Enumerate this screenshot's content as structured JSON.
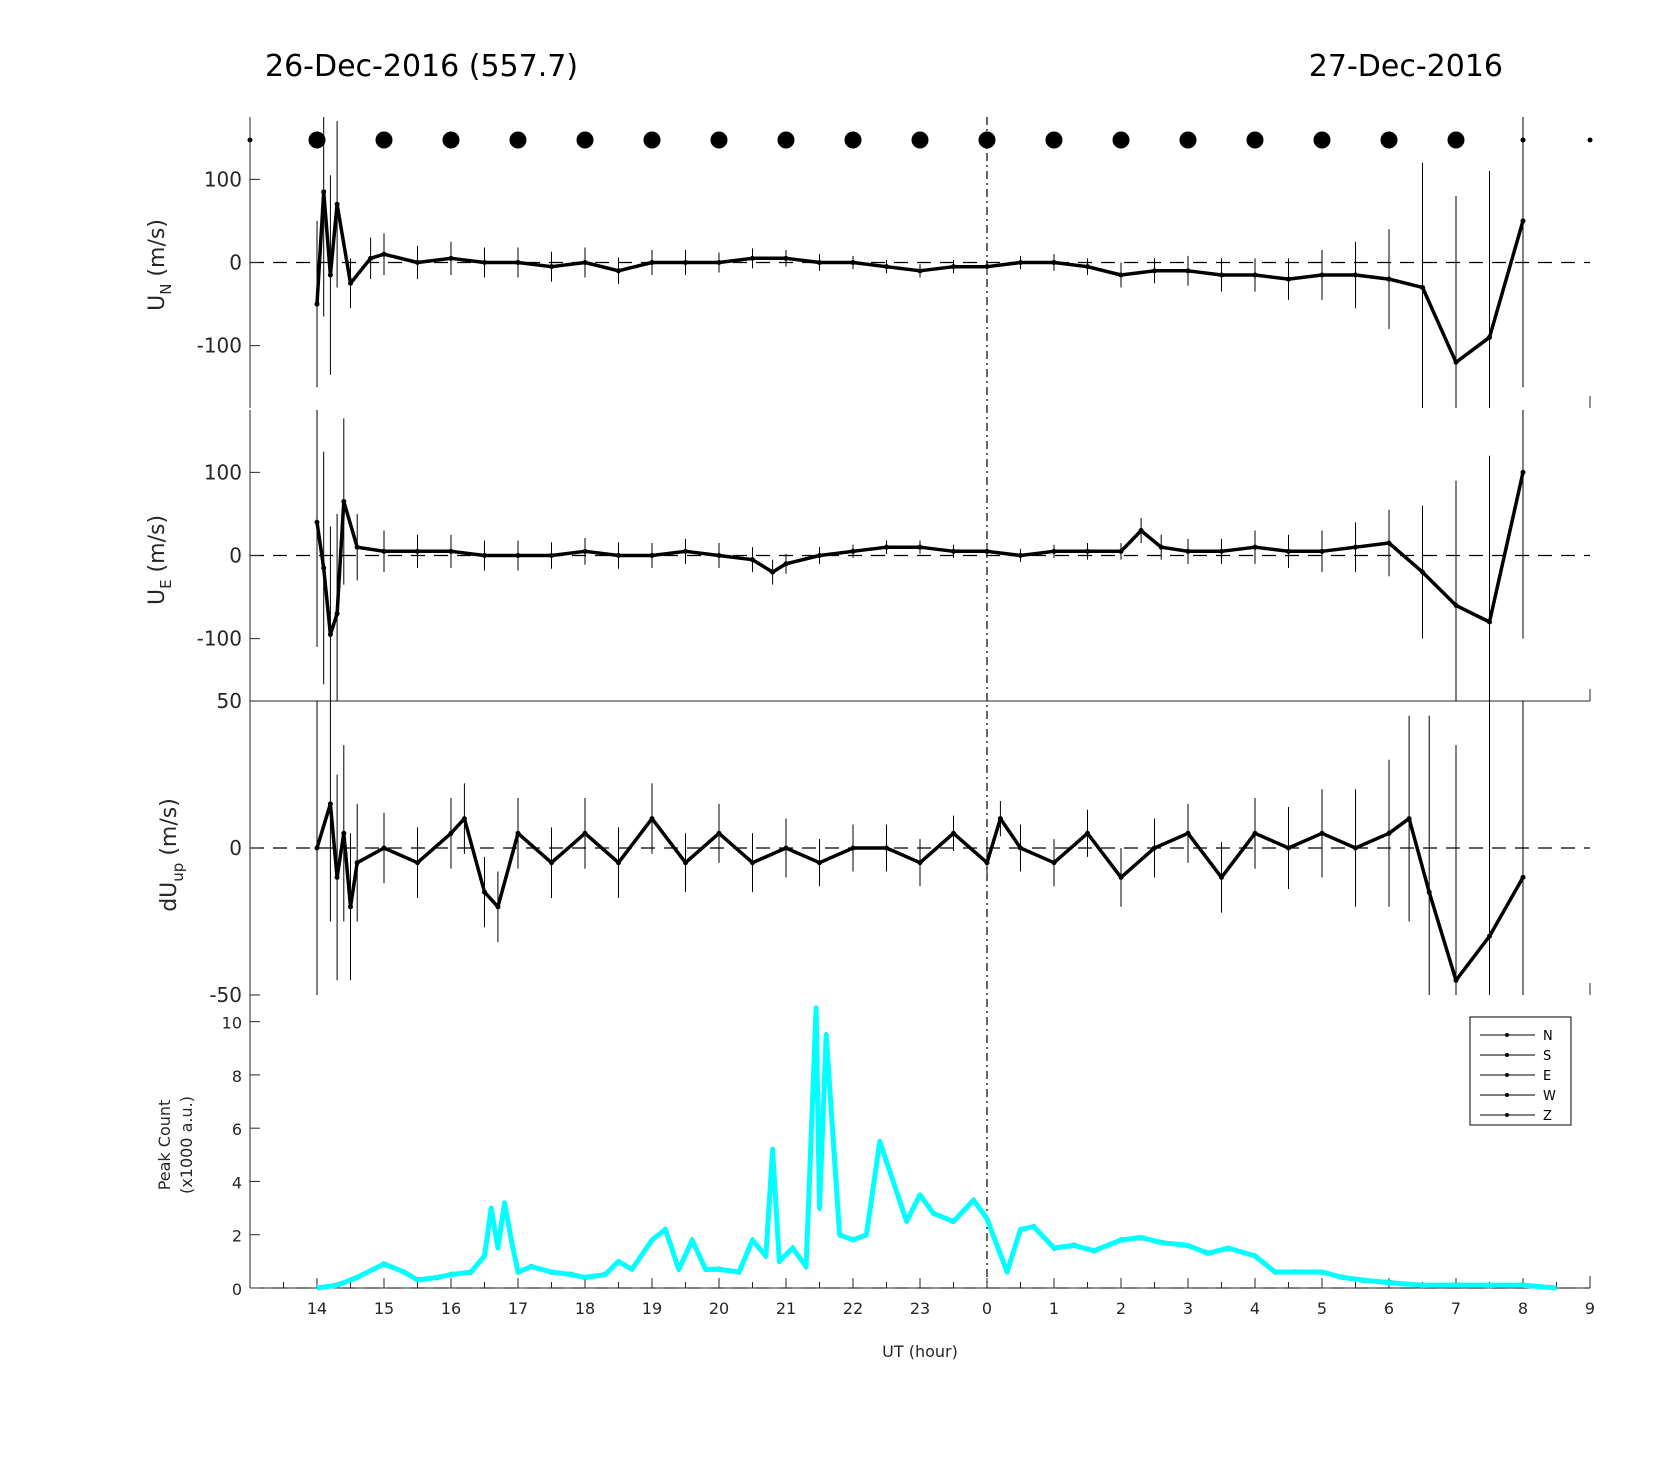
{
  "header": {
    "left_title": "26-Dec-2016 (557.7)",
    "right_title": "27-Dec-2016"
  },
  "panels": {
    "un": {
      "ylabel_main": "U",
      "ylabel_sub": "N",
      "ylabel_unit": " (m/s)"
    },
    "ue": {
      "ylabel_main": "U",
      "ylabel_sub": "E",
      "ylabel_unit": " (m/s)"
    },
    "dup": {
      "ylabel_main": "dU",
      "ylabel_sub": "up",
      "ylabel_unit": " (m/s)"
    },
    "peak": {
      "ylabel_line1": "Peak Count",
      "ylabel_line2": "(x1000 a.u.)",
      "xlabel": "UT (hour)"
    }
  },
  "colors": {
    "wind": "#000000",
    "N": "#000000",
    "S": "#ff0000",
    "E": "#00cc00",
    "W": "#0000ff",
    "Z": "#00ffff"
  },
  "chart_data": [
    {
      "type": "line",
      "panel": "un",
      "ylabel": "U_N (m/s)",
      "x_label": "UT (hour)",
      "xlim": [
        13,
        33
      ],
      "ylim": [
        -175,
        175
      ],
      "yticks": [
        -100,
        0,
        100
      ],
      "zero_line": "dashed",
      "midnight_line": "dash-dot at 0 UT",
      "x": [
        14.0,
        14.1,
        14.2,
        14.3,
        14.5,
        14.8,
        15.0,
        15.5,
        16.0,
        16.5,
        17.0,
        17.5,
        18.0,
        18.5,
        19.0,
        19.5,
        20.0,
        20.5,
        21.0,
        21.5,
        22.0,
        22.5,
        23.0,
        23.5,
        24.0,
        24.5,
        25.0,
        25.5,
        26.0,
        26.5,
        27.0,
        27.5,
        28.0,
        28.5,
        29.0,
        29.5,
        30.0,
        30.5,
        31.0,
        31.5,
        32.0
      ],
      "values": [
        -50,
        85,
        -15,
        70,
        -25,
        5,
        10,
        0,
        5,
        0,
        0,
        -5,
        0,
        -10,
        0,
        0,
        0,
        5,
        5,
        0,
        0,
        -5,
        -10,
        -5,
        -5,
        0,
        0,
        -5,
        -15,
        -10,
        -10,
        -15,
        -15,
        -20,
        -15,
        -15,
        -20,
        -30,
        -120,
        -90,
        50
      ],
      "error": [
        100,
        150,
        120,
        100,
        30,
        25,
        25,
        20,
        20,
        18,
        18,
        18,
        18,
        16,
        15,
        15,
        12,
        12,
        10,
        10,
        8,
        8,
        8,
        8,
        8,
        8,
        10,
        10,
        15,
        15,
        18,
        20,
        20,
        25,
        30,
        40,
        60,
        150,
        200,
        200,
        200
      ]
    },
    {
      "type": "line",
      "panel": "ue",
      "ylabel": "U_E (m/s)",
      "xlim": [
        13,
        33
      ],
      "ylim": [
        -175,
        175
      ],
      "yticks": [
        -100,
        0,
        100
      ],
      "x": [
        14.0,
        14.1,
        14.2,
        14.3,
        14.4,
        14.6,
        15.0,
        15.5,
        16.0,
        16.5,
        17.0,
        17.5,
        18.0,
        18.5,
        19.0,
        19.5,
        20.0,
        20.5,
        20.8,
        21.0,
        21.5,
        22.0,
        22.5,
        23.0,
        23.5,
        24.0,
        24.5,
        25.0,
        25.5,
        26.0,
        26.3,
        26.6,
        27.0,
        27.5,
        28.0,
        28.5,
        29.0,
        29.5,
        30.0,
        30.5,
        31.0,
        31.5,
        32.0
      ],
      "values": [
        40,
        -15,
        -95,
        -70,
        65,
        10,
        5,
        5,
        5,
        0,
        0,
        0,
        5,
        0,
        0,
        5,
        0,
        -5,
        -20,
        -10,
        0,
        5,
        10,
        10,
        5,
        5,
        0,
        5,
        5,
        5,
        30,
        10,
        5,
        5,
        10,
        5,
        5,
        10,
        15,
        -20,
        -60,
        -80,
        100
      ],
      "error": [
        150,
        140,
        130,
        120,
        100,
        40,
        25,
        20,
        20,
        18,
        18,
        16,
        16,
        16,
        15,
        15,
        15,
        15,
        15,
        12,
        10,
        8,
        8,
        8,
        8,
        8,
        8,
        8,
        10,
        10,
        15,
        15,
        15,
        15,
        20,
        20,
        25,
        30,
        40,
        80,
        150,
        200,
        200
      ]
    },
    {
      "type": "line",
      "panel": "dup",
      "ylabel": "dU_up (m/s)",
      "xlim": [
        13,
        33
      ],
      "ylim": [
        -50,
        50
      ],
      "yticks": [
        -50,
        0,
        50
      ],
      "x": [
        14.0,
        14.2,
        14.3,
        14.4,
        14.5,
        14.6,
        15.0,
        15.5,
        16.0,
        16.2,
        16.5,
        16.7,
        17.0,
        17.5,
        18.0,
        18.5,
        19.0,
        19.5,
        20.0,
        20.5,
        21.0,
        21.5,
        22.0,
        22.5,
        23.0,
        23.5,
        24.0,
        24.2,
        24.5,
        25.0,
        25.5,
        26.0,
        26.5,
        27.0,
        27.5,
        28.0,
        28.5,
        29.0,
        29.5,
        30.0,
        30.3,
        30.6,
        31.0,
        31.5,
        32.0
      ],
      "values": [
        0,
        15,
        -10,
        5,
        -20,
        -5,
        0,
        -5,
        5,
        10,
        -15,
        -20,
        5,
        -5,
        5,
        -5,
        10,
        -5,
        5,
        -5,
        0,
        -5,
        0,
        0,
        -5,
        5,
        -5,
        10,
        0,
        -5,
        5,
        -10,
        0,
        5,
        -10,
        5,
        0,
        5,
        0,
        5,
        10,
        -15,
        -45,
        -30,
        -10
      ],
      "error": [
        50,
        40,
        35,
        30,
        25,
        20,
        12,
        12,
        12,
        12,
        12,
        12,
        12,
        12,
        12,
        12,
        12,
        10,
        10,
        10,
        10,
        8,
        8,
        8,
        8,
        6,
        6,
        6,
        8,
        8,
        8,
        10,
        10,
        10,
        12,
        12,
        14,
        15,
        20,
        25,
        35,
        60,
        80,
        90,
        90
      ]
    },
    {
      "type": "line",
      "panel": "peak",
      "ylabel": "Peak Count (x1000 a.u.)",
      "xlabel": "UT (hour)",
      "xlim": [
        13,
        33
      ],
      "ylim": [
        0,
        11
      ],
      "yticks": [
        0,
        2,
        4,
        6,
        8,
        10
      ],
      "xtick_labels": [
        "14",
        "15",
        "16",
        "17",
        "18",
        "19",
        "20",
        "21",
        "22",
        "23",
        "0",
        "1",
        "2",
        "3",
        "4",
        "5",
        "6",
        "7",
        "8",
        "9"
      ],
      "legend": [
        "N",
        "S",
        "E",
        "W",
        "Z"
      ],
      "legend_position": "top-right",
      "x": [
        14.0,
        14.3,
        14.6,
        15.0,
        15.3,
        15.5,
        15.8,
        16.0,
        16.3,
        16.5,
        16.6,
        16.7,
        16.8,
        16.9,
        17.0,
        17.2,
        17.5,
        17.8,
        18.0,
        18.3,
        18.5,
        18.7,
        19.0,
        19.2,
        19.4,
        19.6,
        19.8,
        20.0,
        20.3,
        20.5,
        20.7,
        20.8,
        20.9,
        21.1,
        21.3,
        21.45,
        21.5,
        21.6,
        21.8,
        22.0,
        22.2,
        22.4,
        22.6,
        22.8,
        23.0,
        23.2,
        23.5,
        23.8,
        24.0,
        24.3,
        24.5,
        24.7,
        25.0,
        25.3,
        25.6,
        26.0,
        26.3,
        26.6,
        27.0,
        27.3,
        27.6,
        28.0,
        28.3,
        28.6,
        29.0,
        29.3,
        29.6,
        30.0,
        30.5,
        31.0,
        31.5,
        32.0,
        32.5
      ],
      "values": [
        0.0,
        0.1,
        0.4,
        0.9,
        0.6,
        0.3,
        0.4,
        0.5,
        0.6,
        1.2,
        3.0,
        1.5,
        3.2,
        1.8,
        0.6,
        0.8,
        0.6,
        0.5,
        0.4,
        0.5,
        1.0,
        0.7,
        1.8,
        2.2,
        0.7,
        1.8,
        0.7,
        0.7,
        0.6,
        1.8,
        1.2,
        5.2,
        1.0,
        1.5,
        0.8,
        10.5,
        3.0,
        9.5,
        2.0,
        1.8,
        2.0,
        5.5,
        4.0,
        2.5,
        3.5,
        2.8,
        2.5,
        3.3,
        2.6,
        0.6,
        2.2,
        2.3,
        1.5,
        1.6,
        1.4,
        1.8,
        1.9,
        1.7,
        1.6,
        1.3,
        1.5,
        1.2,
        0.6,
        0.6,
        0.6,
        0.4,
        0.3,
        0.2,
        0.1,
        0.1,
        0.1,
        0.1,
        0.0
      ]
    }
  ]
}
